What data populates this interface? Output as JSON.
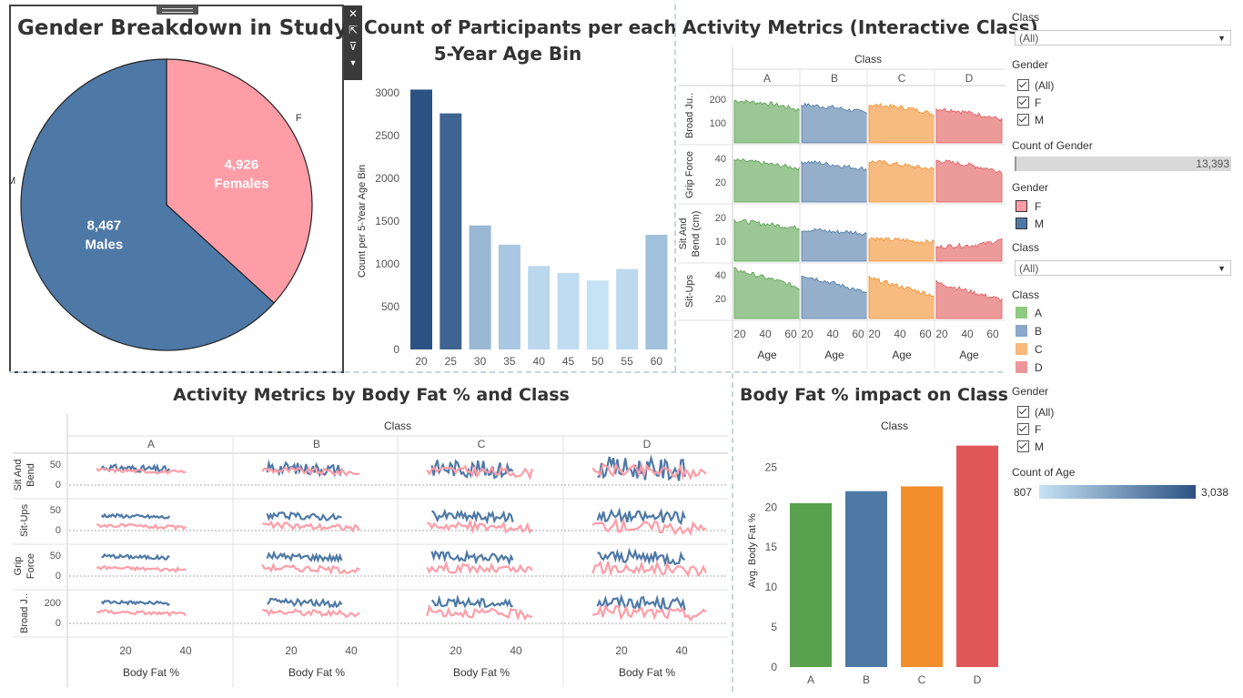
{
  "colors": {
    "female": "#ff9da7",
    "male": "#4e79a7",
    "class_a": "#59a14f",
    "class_b": "#4e79a7",
    "class_c": "#f28e2b",
    "class_d": "#e15759",
    "age_low": "#c6e2f5",
    "age_high": "#2c5283"
  },
  "toolbar": {
    "icons": [
      "close-icon",
      "popout-icon",
      "filter-icon",
      "menu-icon"
    ]
  },
  "pie": {
    "title": "Gender Breakdown in Study",
    "chart_data": {
      "type": "pie",
      "slices": [
        {
          "label": "F",
          "value": 4926,
          "value_text": "4,926",
          "sub": "Females"
        },
        {
          "label": "M",
          "value": 8467,
          "value_text": "8,467",
          "sub": "Males"
        }
      ]
    }
  },
  "age_bins": {
    "title_line1": "Count of Participants per each",
    "title_line2": "5-Year Age Bin",
    "chart_data": {
      "type": "bar",
      "categories": [
        "20",
        "25",
        "30",
        "35",
        "40",
        "45",
        "50",
        "55",
        "60"
      ],
      "values": [
        3038,
        2760,
        1450,
        1225,
        975,
        895,
        807,
        940,
        1340
      ],
      "ylabel": "Count per 5-Year Age Bin",
      "ylim": [
        0,
        3000
      ],
      "yticks": [
        "0",
        "500",
        "1000",
        "1500",
        "2000",
        "2500",
        "3000"
      ]
    }
  },
  "activity_class": {
    "title": "Activity Metrics (Interactive Class)",
    "column_header": "Class",
    "classes": [
      "A",
      "B",
      "C",
      "D"
    ],
    "rows": [
      "Broad Ju..",
      "Grip Force",
      "Sit And Bend (cm)",
      "Sit-Ups"
    ],
    "row_ticks": [
      [
        "100",
        "200"
      ],
      [
        "20",
        "40"
      ],
      [
        "10",
        "20"
      ],
      [
        "20",
        "40"
      ]
    ],
    "x_ticks": [
      "20",
      "40",
      "60"
    ],
    "x_label": "Age",
    "chart_data": {
      "type": "area",
      "x": [
        20,
        30,
        40,
        50,
        60
      ],
      "series": [
        {
          "name": "A",
          "broad_jump": [
            215,
            210,
            205,
            195,
            180
          ],
          "grip_force": [
            43,
            42,
            40,
            38,
            36
          ],
          "sit_and_bend": [
            21,
            20,
            19,
            18,
            17
          ],
          "sit_ups": [
            50,
            46,
            42,
            38,
            33
          ]
        },
        {
          "name": "B",
          "broad_jump": [
            200,
            195,
            190,
            180,
            170
          ],
          "grip_force": [
            42,
            41,
            39,
            37,
            35
          ],
          "sit_and_bend": [
            16,
            16,
            15,
            15,
            14
          ],
          "sit_ups": [
            45,
            41,
            37,
            33,
            28
          ]
        },
        {
          "name": "C",
          "broad_jump": [
            200,
            195,
            190,
            180,
            165
          ],
          "grip_force": [
            42,
            41,
            39,
            37,
            35
          ],
          "sit_and_bend": [
            12,
            11,
            11,
            10,
            10
          ],
          "sit_ups": [
            42,
            38,
            34,
            30,
            26
          ]
        },
        {
          "name": "D",
          "broad_jump": [
            185,
            180,
            170,
            160,
            145
          ],
          "grip_force": [
            43,
            41,
            39,
            36,
            33
          ],
          "sit_and_bend": [
            7,
            8,
            8,
            9,
            11
          ],
          "sit_ups": [
            38,
            34,
            30,
            26,
            22
          ]
        }
      ]
    }
  },
  "bodyfat_class": {
    "title": "Activity Metrics by Body Fat % and Class",
    "column_header": "Class",
    "classes": [
      "A",
      "B",
      "C",
      "D"
    ],
    "rows": [
      "Sit And Bend",
      "Sit-Ups",
      "Grip Force",
      "Broad J.."
    ],
    "row_ticks": [
      [
        "0",
        "50"
      ],
      [
        "0",
        "50"
      ],
      [
        "0",
        "50"
      ],
      [
        "0",
        "200"
      ]
    ],
    "x_ticks": [
      "20",
      "40"
    ],
    "x_label": "Body Fat %",
    "chart_data": {
      "type": "line",
      "x_range": [
        0,
        50
      ],
      "series_names": [
        "F",
        "M"
      ],
      "note_levels": {
        "sit_and_bend": {
          "F": 20,
          "M": 15
        },
        "sit_ups": {
          "F": 30,
          "M": 50
        },
        "grip_force": {
          "F": 25,
          "M": 45
        },
        "broad_jump": {
          "F": 165,
          "M": 215
        }
      }
    }
  },
  "bodyfat_impact": {
    "title": "Body Fat % impact on Class",
    "column_header": "Class",
    "chart_data": {
      "type": "bar",
      "categories": [
        "A",
        "B",
        "C",
        "D"
      ],
      "values": [
        20.5,
        22.0,
        22.6,
        27.7
      ],
      "ylabel": "Avg. Body Fat %",
      "ylim": [
        0,
        28
      ],
      "yticks": [
        "0",
        "5",
        "10",
        "15",
        "20",
        "25"
      ]
    }
  },
  "filters": {
    "class_filter_1": {
      "title": "Class",
      "value": "(All)"
    },
    "gender_filter_1": {
      "title": "Gender",
      "options": [
        "(All)",
        "F",
        "M"
      ]
    },
    "count_gender": {
      "title": "Count of Gender",
      "value": "13,393"
    },
    "gender_legend": {
      "title": "Gender",
      "items": [
        "F",
        "M"
      ]
    },
    "class_filter_2": {
      "title": "Class",
      "value": "(All)"
    },
    "class_legend": {
      "title": "Class",
      "items": [
        "A",
        "B",
        "C",
        "D"
      ]
    },
    "gender_filter_2": {
      "title": "Gender",
      "options": [
        "(All)",
        "F",
        "M"
      ]
    },
    "count_age": {
      "title": "Count of Age",
      "min": "807",
      "max": "3,038"
    }
  }
}
